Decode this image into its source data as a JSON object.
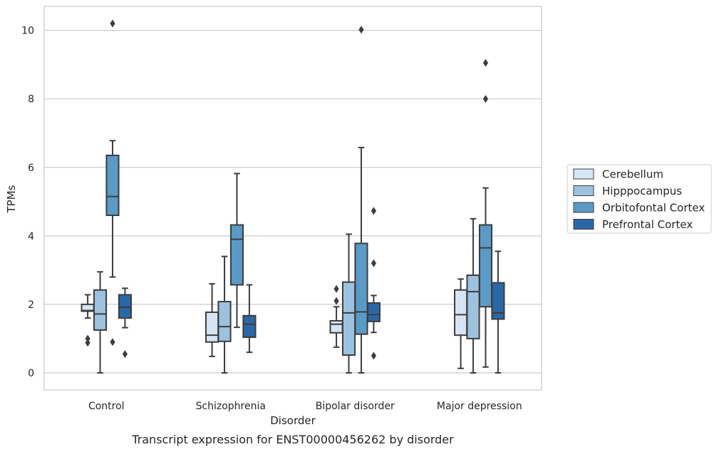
{
  "chart_data": {
    "type": "box",
    "caption": "Transcript expression for ENST00000456262 by disorder",
    "xlabel": "Disorder",
    "ylabel": "TPMs",
    "ylim": [
      -0.5,
      10.7
    ],
    "yticks": [
      0,
      2,
      4,
      6,
      8,
      10
    ],
    "categories": [
      "Control",
      "Schizophrenia",
      "Bipolar disorder",
      "Major depression"
    ],
    "grid": true,
    "legend_position": "right",
    "series": [
      {
        "name": "Cerebellum",
        "color": "#d6e5f3",
        "boxes": [
          {
            "whislo": 1.6,
            "q1": 1.8,
            "med": 1.82,
            "q3": 2.0,
            "whishi": 2.28,
            "fliers": [
              1.0,
              0.88
            ]
          },
          {
            "whislo": 0.48,
            "q1": 0.9,
            "med": 1.1,
            "q3": 1.77,
            "whishi": 2.6,
            "fliers": []
          },
          {
            "whislo": 0.75,
            "q1": 1.17,
            "med": 1.42,
            "q3": 1.52,
            "whishi": 1.93,
            "fliers": [
              2.1,
              2.45
            ]
          },
          {
            "whislo": 0.13,
            "q1": 1.1,
            "med": 1.7,
            "q3": 2.42,
            "whishi": 2.74,
            "fliers": []
          }
        ]
      },
      {
        "name": "Hipppocampus",
        "color": "#9cc2df",
        "boxes": [
          {
            "whislo": 0.0,
            "q1": 1.25,
            "med": 1.72,
            "q3": 2.42,
            "whishi": 2.95,
            "fliers": []
          },
          {
            "whislo": 0.0,
            "q1": 0.92,
            "med": 1.35,
            "q3": 2.08,
            "whishi": 3.4,
            "fliers": []
          },
          {
            "whislo": 0.0,
            "q1": 0.52,
            "med": 1.75,
            "q3": 2.65,
            "whishi": 4.05,
            "fliers": []
          },
          {
            "whislo": 0.0,
            "q1": 1.0,
            "med": 2.37,
            "q3": 2.85,
            "whishi": 4.5,
            "fliers": []
          }
        ]
      },
      {
        "name": "Orbitofontal Cortex",
        "color": "#5a9ac6",
        "boxes": [
          {
            "whislo": 2.8,
            "q1": 4.6,
            "med": 5.15,
            "q3": 6.35,
            "whishi": 6.78,
            "fliers": [
              0.9,
              10.2
            ]
          },
          {
            "whislo": 1.33,
            "q1": 2.57,
            "med": 3.9,
            "q3": 4.32,
            "whishi": 5.82,
            "fliers": []
          },
          {
            "whislo": 0.0,
            "q1": 1.13,
            "med": 1.78,
            "q3": 3.78,
            "whishi": 6.58,
            "fliers": [
              10.02
            ]
          },
          {
            "whislo": 0.17,
            "q1": 1.93,
            "med": 3.65,
            "q3": 4.32,
            "whishi": 5.4,
            "fliers": [
              8.0,
              9.05
            ]
          }
        ]
      },
      {
        "name": "Prefrontal Cortex",
        "color": "#2a67a8",
        "boxes": [
          {
            "whislo": 1.32,
            "q1": 1.6,
            "med": 1.92,
            "q3": 2.28,
            "whishi": 2.47,
            "fliers": [
              0.55
            ]
          },
          {
            "whislo": 0.6,
            "q1": 1.04,
            "med": 1.42,
            "q3": 1.67,
            "whishi": 2.57,
            "fliers": []
          },
          {
            "whislo": 1.18,
            "q1": 1.5,
            "med": 1.7,
            "q3": 2.04,
            "whishi": 2.26,
            "fliers": [
              0.5,
              3.2,
              4.73
            ]
          },
          {
            "whislo": 0.0,
            "q1": 1.57,
            "med": 1.75,
            "q3": 2.63,
            "whishi": 3.55,
            "fliers": []
          }
        ]
      }
    ]
  }
}
